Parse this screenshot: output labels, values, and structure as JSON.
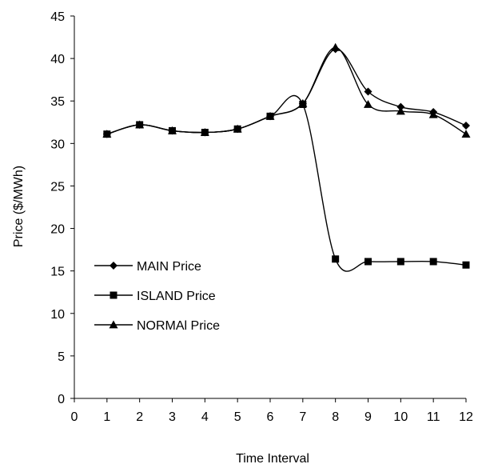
{
  "chart_data": {
    "type": "line",
    "xlabel": "Time Interval",
    "ylabel": "Price ($/MWh)",
    "xlim": [
      0,
      12
    ],
    "ylim": [
      0,
      45
    ],
    "x_ticks": [
      "0",
      "1",
      "2",
      "3",
      "4",
      "5",
      "6",
      "7",
      "8",
      "9",
      "10",
      "11",
      "12"
    ],
    "y_ticks": [
      "0",
      "5",
      "10",
      "15",
      "20",
      "25",
      "30",
      "35",
      "40",
      "45"
    ],
    "grid": false,
    "legend_position": "left-middle",
    "x": [
      1,
      2,
      3,
      4,
      5,
      6,
      7,
      8,
      9,
      10,
      11,
      12
    ],
    "series": [
      {
        "name": "MAIN Price",
        "marker": "diamond",
        "values": [
          31.1,
          32.2,
          31.5,
          31.3,
          31.7,
          33.2,
          34.7,
          41.1,
          36.1,
          34.3,
          33.7,
          32.1
        ]
      },
      {
        "name": "ISLAND Price",
        "marker": "square",
        "values": [
          31.1,
          32.2,
          31.5,
          31.3,
          31.7,
          33.2,
          34.6,
          16.4,
          16.1,
          16.1,
          16.1,
          15.7
        ]
      },
      {
        "name": "NORMAl Price",
        "marker": "triangle",
        "values": [
          31.1,
          32.2,
          31.5,
          31.3,
          31.7,
          33.2,
          34.7,
          41.3,
          34.6,
          33.8,
          33.4,
          31.1
        ]
      }
    ],
    "colors": {
      "line": "#000000",
      "marker": "#000000"
    }
  }
}
